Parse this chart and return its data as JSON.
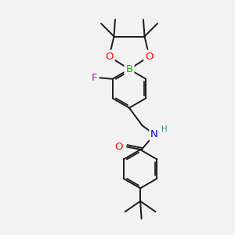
{
  "bg_color": "#f2f2f2",
  "bond_color": "#1a1a1a",
  "bond_width": 1.4,
  "atom_colors": {
    "B": "#00bb00",
    "O": "#ff0000",
    "N": "#0000ee",
    "F": "#cc00cc",
    "C": "#1a1a1a",
    "H": "#448888"
  },
  "font_size": 8.5
}
